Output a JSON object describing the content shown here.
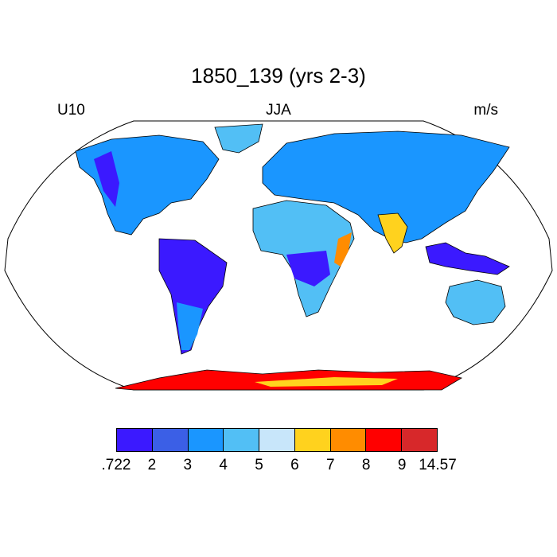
{
  "title": "1850_139 (yrs 2-3)",
  "left_label": "U10",
  "center_label": "JJA",
  "right_label": "m/s",
  "colorbar": {
    "colors": [
      "#3b19ff",
      "#3b5fe6",
      "#1a96ff",
      "#52bff5",
      "#c8e6fa",
      "#ffd21e",
      "#ff8c00",
      "#ff0000",
      "#d7282a"
    ],
    "labels": [
      ".722",
      "2",
      "3",
      "4",
      "5",
      "6",
      "7",
      "8",
      "9",
      "14.57"
    ]
  },
  "map": {
    "projection": "robinson",
    "variable_colors": {
      "ocean": "#ffffff",
      "land_low": "#3b19ff",
      "land_mid": "#1a96ff",
      "land_high": "#52bff5",
      "antarctica": "#ff0000"
    }
  }
}
